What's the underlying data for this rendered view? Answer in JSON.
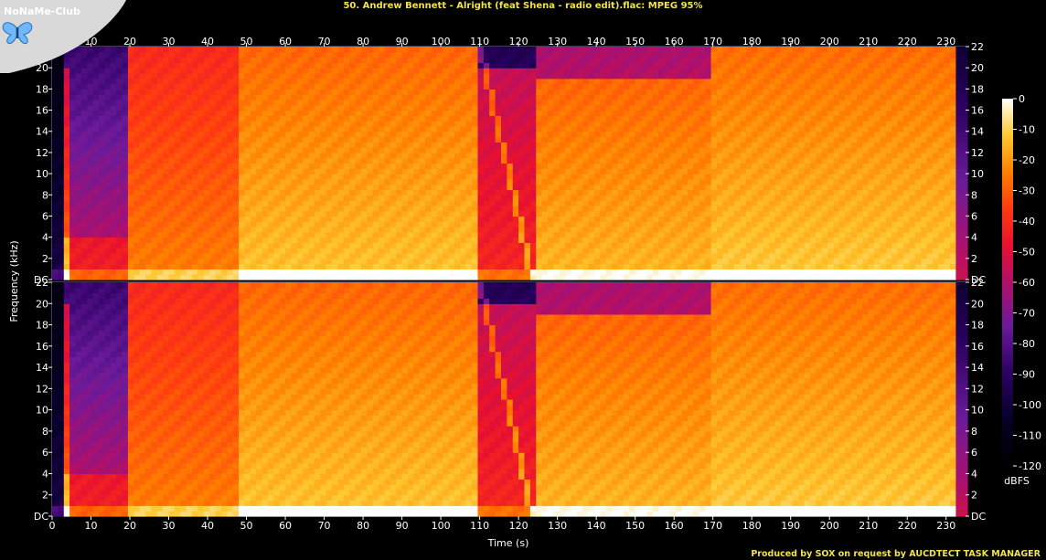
{
  "watermark": {
    "text": "NoNaMe-Club",
    "icon": "butterfly-icon"
  },
  "chart_data": {
    "type": "heatmap",
    "title": "50. Andrew Bennett - Alright (feat Shena - radio edit).flac: MPEG 95%",
    "xlabel": "Time (s)",
    "ylabel": "Frequency (kHz)",
    "xlim": [
      0,
      235
    ],
    "ylim": [
      0,
      22
    ],
    "x_ticks": [
      0,
      10,
      20,
      30,
      40,
      50,
      60,
      70,
      80,
      90,
      100,
      110,
      120,
      130,
      140,
      150,
      160,
      170,
      180,
      190,
      200,
      210,
      220,
      230
    ],
    "y_ticks": [
      "DC",
      "2",
      "4",
      "6",
      "8",
      "10",
      "12",
      "14",
      "16",
      "18",
      "20",
      "22"
    ],
    "channels": 2,
    "colorbar": {
      "label": "dBFS",
      "ticks": [
        "0",
        "-10",
        "-20",
        "-30",
        "-40",
        "-50",
        "-60",
        "-70",
        "-80",
        "-90",
        "-100",
        "-110",
        "-120"
      ],
      "range": [
        -120,
        0
      ]
    },
    "sections": [
      {
        "start": 0,
        "end": 3,
        "intensity": "silence"
      },
      {
        "start": 3,
        "end": 19,
        "intensity": "quiet-intro"
      },
      {
        "start": 19,
        "end": 48,
        "intensity": "medium"
      },
      {
        "start": 48,
        "end": 110,
        "intensity": "loud"
      },
      {
        "start": 110,
        "end": 124,
        "intensity": "breakdown-sweep"
      },
      {
        "start": 124,
        "end": 170,
        "intensity": "loud-rolloff"
      },
      {
        "start": 170,
        "end": 232,
        "intensity": "loud"
      },
      {
        "start": 232,
        "end": 235,
        "intensity": "fade-out"
      }
    ],
    "grid": false
  },
  "credit": "Produced by SOX on request by AUCDTECT TASK MANAGER"
}
